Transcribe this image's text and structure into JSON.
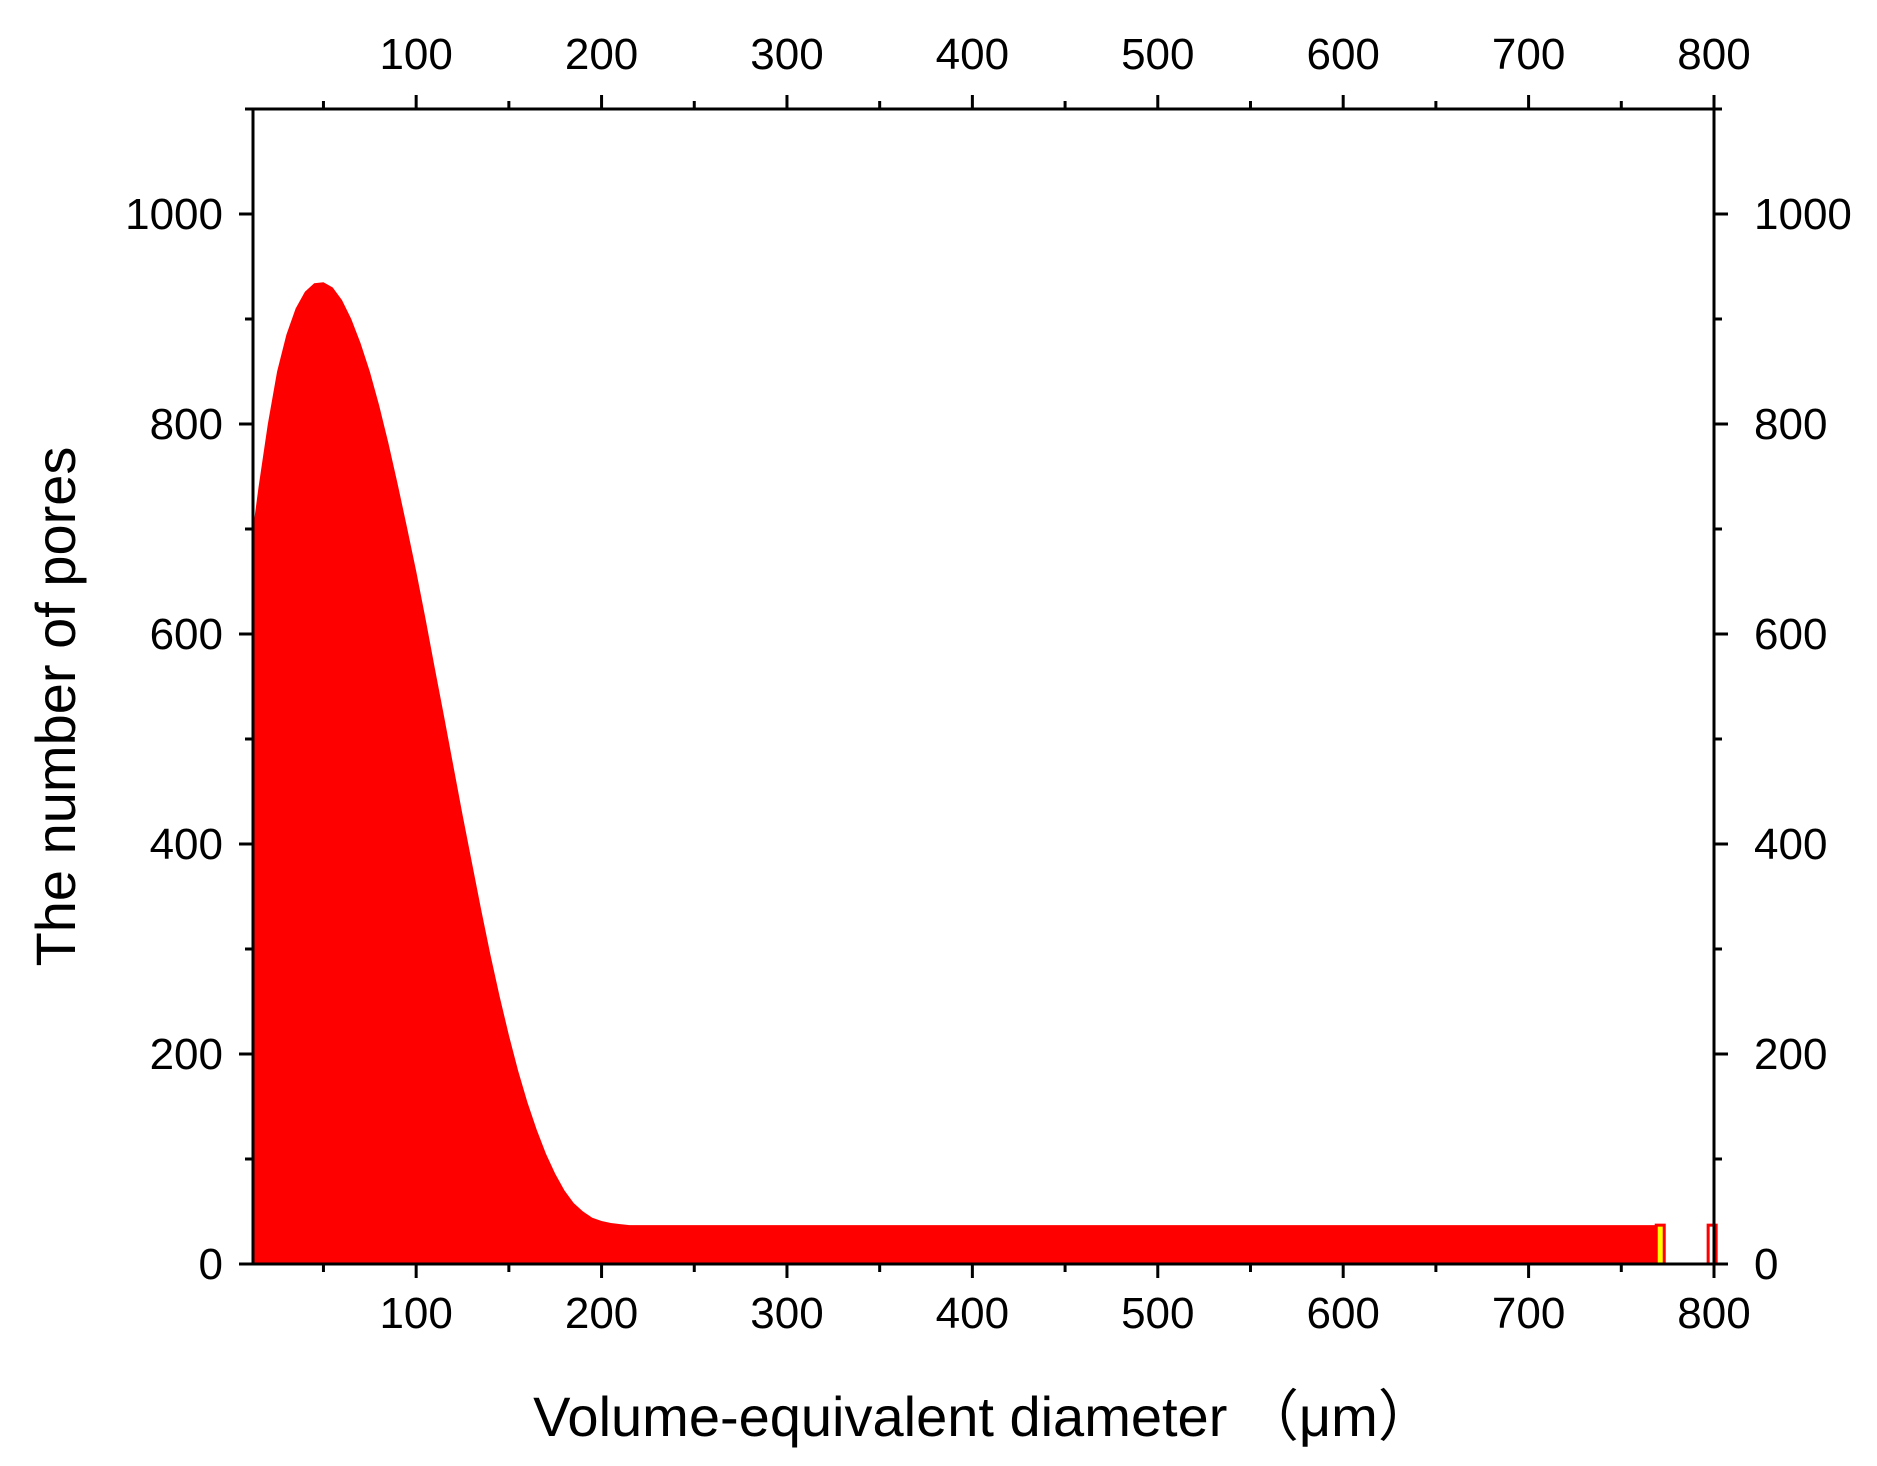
{
  "chart_data": {
    "type": "area",
    "xlabel": "Volume-equivalent diameter （μm）",
    "ylabel": "The number of pores",
    "xlim": [
      12,
      800
    ],
    "ylim": [
      0,
      1100
    ],
    "xticks": [
      100,
      200,
      300,
      400,
      500,
      600,
      700,
      800
    ],
    "xtick_labels": [
      "100",
      "200",
      "300",
      "400",
      "500",
      "600",
      "700",
      "800"
    ],
    "yticks": [
      0,
      200,
      400,
      600,
      800,
      1000
    ],
    "ytick_labels": [
      "0",
      "200",
      "400",
      "600",
      "800",
      "1000"
    ],
    "mirror_axes": [
      "top",
      "right"
    ],
    "grid": false,
    "colors": {
      "fill": "#ff0000",
      "highlight": "#ffff00",
      "axis": "#000000"
    },
    "series": [
      {
        "x": [
          12,
          15,
          20,
          25,
          30,
          35,
          40,
          45,
          50,
          55,
          60,
          65,
          70,
          75,
          80,
          85,
          90,
          95,
          100,
          105,
          110,
          115,
          120,
          125,
          130,
          135,
          140,
          145,
          150,
          155,
          160,
          165,
          170,
          175,
          180,
          185,
          190,
          195,
          200,
          205,
          210,
          215,
          220,
          300,
          400,
          500,
          600,
          700,
          770,
          773
        ],
        "y": [
          700,
          740,
          800,
          850,
          885,
          910,
          926,
          934,
          935,
          930,
          918,
          900,
          877,
          850,
          818,
          782,
          743,
          702,
          660,
          615,
          568,
          522,
          475,
          428,
          383,
          338,
          295,
          255,
          218,
          184,
          154,
          128,
          105,
          86,
          70,
          58,
          50,
          44,
          41,
          39,
          38,
          37,
          37,
          37,
          37,
          37,
          37,
          37,
          37,
          37
        ]
      }
    ],
    "highlight_bars": [
      {
        "x": 771,
        "y": 37,
        "color": "yellow"
      },
      {
        "x": 799,
        "y": 37,
        "color": "red-outline"
      }
    ]
  }
}
